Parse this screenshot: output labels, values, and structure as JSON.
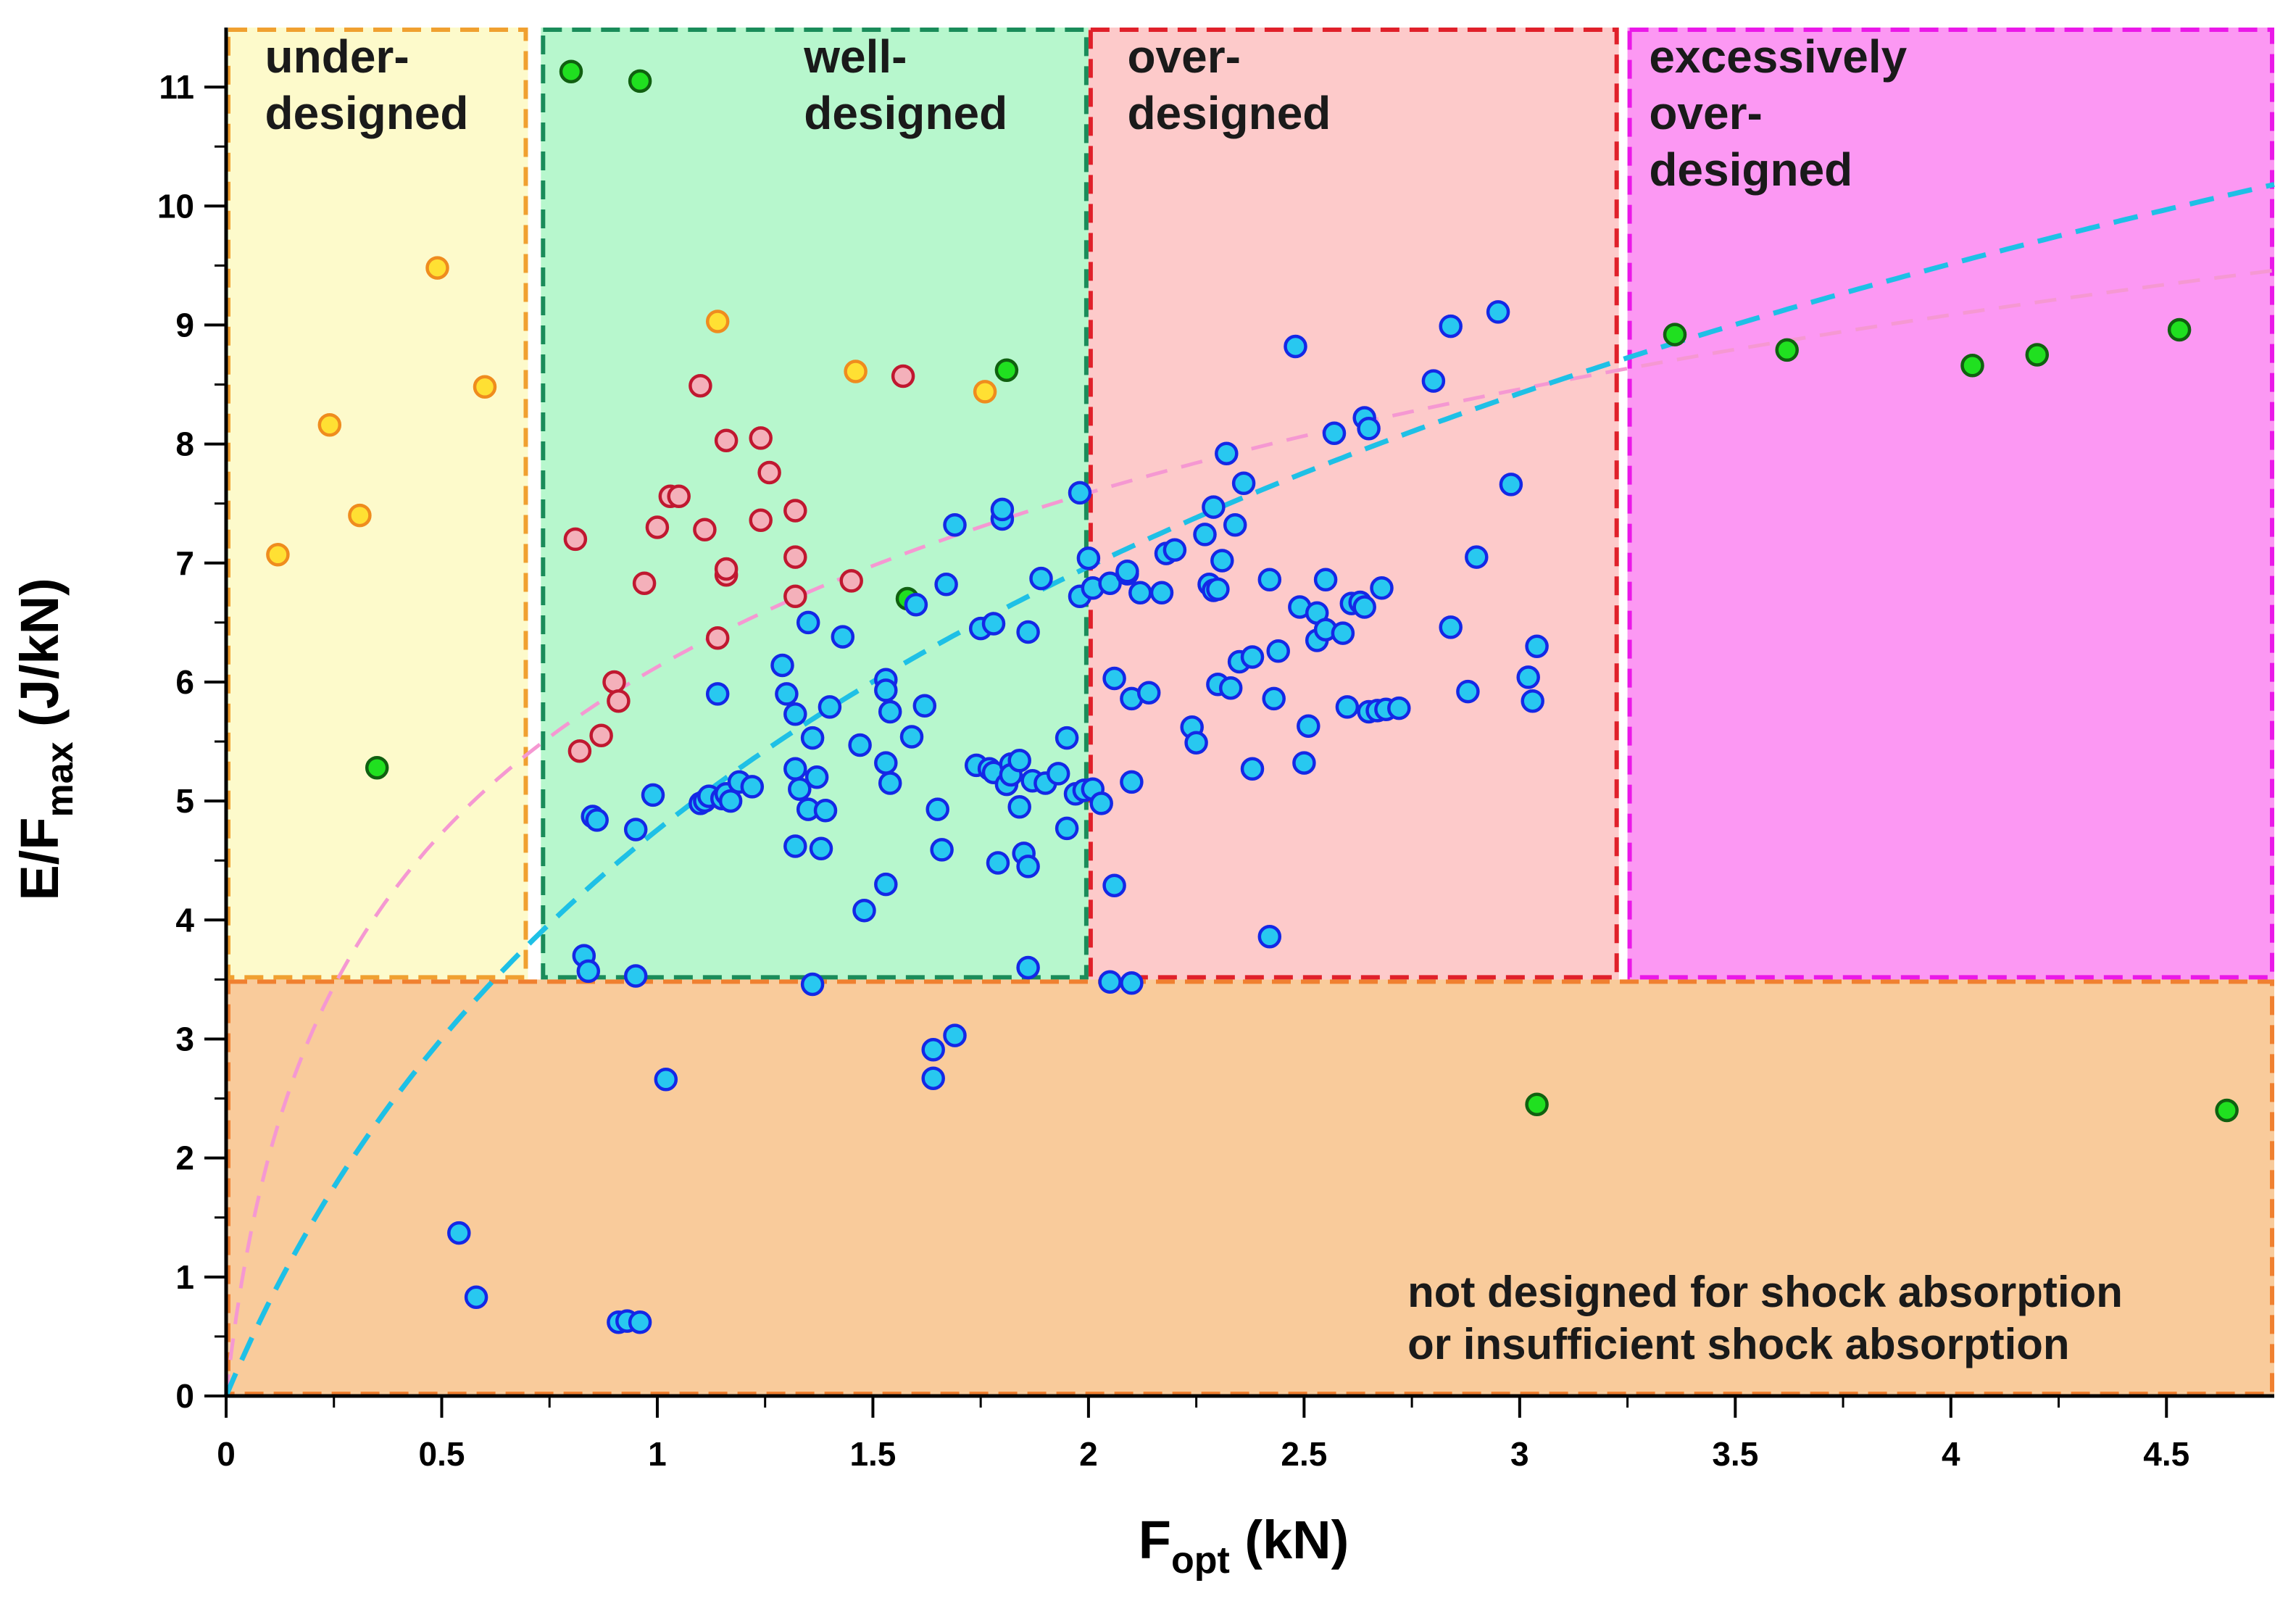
{
  "chart_data": {
    "type": "scatter",
    "title": "",
    "xlabel": {
      "main": "F",
      "sub": "opt",
      "unit": " (kN)"
    },
    "ylabel": {
      "main": "E/F",
      "sub": "max",
      "unit": " (J/kN)"
    },
    "xlim": [
      0,
      4.75
    ],
    "ylim": [
      0,
      11.5
    ],
    "x_ticks": [
      "0",
      "0.5",
      "1",
      "1.5",
      "2",
      "2.5",
      "3",
      "3.5",
      "4",
      "4.5"
    ],
    "y_ticks": [
      "0",
      "1",
      "2",
      "3",
      "4",
      "5",
      "6",
      "7",
      "8",
      "9",
      "10",
      "11"
    ],
    "grid": false,
    "legend": "none",
    "regions": [
      {
        "name": "under-designed",
        "x": [
          0,
          0.7
        ],
        "y": [
          3.5,
          11.5
        ],
        "fill": "#fdfacb",
        "border": "#f0a030"
      },
      {
        "name": "well-designed",
        "x": [
          0.73,
          2.0
        ],
        "y": [
          3.5,
          11.5
        ],
        "fill": "#b7f7cd",
        "border": "#1a8c5a"
      },
      {
        "name": "over-designed",
        "x": [
          2.0,
          3.23
        ],
        "y": [
          3.5,
          11.5
        ],
        "fill": "#fdcaca",
        "border": "#e0202a"
      },
      {
        "name": "excessively over-designed",
        "x": [
          3.25,
          4.75
        ],
        "y": [
          3.5,
          11.5
        ],
        "fill": "#fc98f3",
        "border": "#ea18e8"
      },
      {
        "name": "not designed for shock absorption",
        "x": [
          0,
          4.75
        ],
        "y": [
          0,
          3.5
        ],
        "fill": "#f9cb9b",
        "border": "#f08030"
      }
    ],
    "zone_labels": [
      {
        "lines": [
          "under-",
          "designed"
        ],
        "x": 0.09,
        "y": 11.05
      },
      {
        "lines": [
          "well-",
          "designed"
        ],
        "x": 1.34,
        "y": 11.05
      },
      {
        "lines": [
          "over-",
          "designed"
        ],
        "x": 2.09,
        "y": 11.05
      },
      {
        "lines": [
          "excessively",
          "over-",
          "designed"
        ],
        "x": 3.3,
        "y": 11.05
      }
    ],
    "note": {
      "lines": [
        "not designed for shock absorption",
        "or insufficient shock absorption"
      ],
      "x": 2.74,
      "y": 0.75
    },
    "curves": [
      {
        "name": "",
        "color": "#f598d2",
        "dash": "30,20",
        "width": 5,
        "formula": "a*log(1+b*x)",
        "a": 2.21,
        "b": 15.0
      },
      {
        "name": "",
        "color": "#1ec0e6",
        "dash": "34,20",
        "width": 7,
        "formula": "a*log(1+b*x)",
        "a": 4.33,
        "b": 2.0
      }
    ],
    "series": [
      {
        "name": "",
        "fill": "#ffe033",
        "stroke": "#ef8c1e",
        "points": [
          [
            0.12,
            7.07
          ],
          [
            0.24,
            8.16
          ],
          [
            0.31,
            7.4
          ],
          [
            0.49,
            9.48
          ],
          [
            0.6,
            8.48
          ],
          [
            1.14,
            9.03
          ],
          [
            1.46,
            8.61
          ],
          [
            1.76,
            8.44
          ]
        ]
      },
      {
        "name": "",
        "fill": "#f4b0ba",
        "stroke": "#c01830",
        "points": [
          [
            0.81,
            7.2
          ],
          [
            0.82,
            5.42
          ],
          [
            0.87,
            5.55
          ],
          [
            0.9,
            6.0
          ],
          [
            0.91,
            5.84
          ],
          [
            0.97,
            6.83
          ],
          [
            1.0,
            7.3
          ],
          [
            1.03,
            7.56
          ],
          [
            1.05,
            7.56
          ],
          [
            1.1,
            8.49
          ],
          [
            1.11,
            7.28
          ],
          [
            1.14,
            6.37
          ],
          [
            1.16,
            6.9
          ],
          [
            1.16,
            6.95
          ],
          [
            1.16,
            8.03
          ],
          [
            1.24,
            8.05
          ],
          [
            1.24,
            7.36
          ],
          [
            1.26,
            7.76
          ],
          [
            1.32,
            7.44
          ],
          [
            1.32,
            7.05
          ],
          [
            1.32,
            6.72
          ],
          [
            1.45,
            6.85
          ],
          [
            1.57,
            8.57
          ]
        ]
      },
      {
        "name": "",
        "fill": "#20e020",
        "stroke": "#106010",
        "points": [
          [
            0.35,
            5.28
          ],
          [
            0.8,
            11.13
          ],
          [
            0.96,
            11.05
          ],
          [
            1.58,
            6.7
          ],
          [
            1.81,
            8.62
          ],
          [
            3.04,
            2.45
          ],
          [
            3.36,
            8.92
          ],
          [
            3.62,
            8.79
          ],
          [
            4.05,
            8.66
          ],
          [
            4.2,
            8.75
          ],
          [
            4.53,
            8.96
          ],
          [
            4.64,
            2.4
          ]
        ]
      },
      {
        "name": "",
        "fill": "#28c8f0",
        "stroke": "#1428e6",
        "points": [
          [
            0.54,
            1.37
          ],
          [
            0.58,
            0.83
          ],
          [
            0.83,
            3.7
          ],
          [
            0.84,
            3.57
          ],
          [
            0.85,
            4.87
          ],
          [
            0.86,
            4.84
          ],
          [
            0.91,
            0.62
          ],
          [
            0.93,
            0.63
          ],
          [
            0.95,
            3.53
          ],
          [
            0.95,
            4.76
          ],
          [
            0.96,
            0.62
          ],
          [
            0.99,
            5.05
          ],
          [
            1.02,
            2.66
          ],
          [
            1.1,
            4.98
          ],
          [
            1.11,
            5.0
          ],
          [
            1.12,
            5.04
          ],
          [
            1.14,
            5.9
          ],
          [
            1.15,
            5.02
          ],
          [
            1.16,
            5.06
          ],
          [
            1.17,
            5.0
          ],
          [
            1.19,
            5.16
          ],
          [
            1.22,
            5.12
          ],
          [
            1.29,
            6.14
          ],
          [
            1.3,
            5.9
          ],
          [
            1.32,
            5.27
          ],
          [
            1.32,
            5.73
          ],
          [
            1.32,
            4.62
          ],
          [
            1.33,
            5.1
          ],
          [
            1.35,
            4.93
          ],
          [
            1.35,
            6.5
          ],
          [
            1.36,
            5.53
          ],
          [
            1.36,
            3.46
          ],
          [
            1.37,
            5.2
          ],
          [
            1.38,
            4.6
          ],
          [
            1.39,
            4.92
          ],
          [
            1.4,
            5.79
          ],
          [
            1.43,
            6.38
          ],
          [
            1.47,
            5.47
          ],
          [
            1.48,
            4.08
          ],
          [
            1.53,
            6.02
          ],
          [
            1.53,
            5.93
          ],
          [
            1.53,
            5.32
          ],
          [
            1.53,
            4.3
          ],
          [
            1.54,
            5.75
          ],
          [
            1.54,
            5.15
          ],
          [
            1.59,
            5.54
          ],
          [
            1.6,
            6.65
          ],
          [
            1.62,
            5.8
          ],
          [
            1.64,
            2.91
          ],
          [
            1.64,
            2.67
          ],
          [
            1.65,
            4.93
          ],
          [
            1.66,
            4.59
          ],
          [
            1.67,
            6.82
          ],
          [
            1.69,
            3.03
          ],
          [
            1.69,
            7.32
          ],
          [
            1.74,
            5.3
          ],
          [
            1.75,
            6.45
          ],
          [
            1.77,
            5.27
          ],
          [
            1.78,
            5.24
          ],
          [
            1.78,
            6.49
          ],
          [
            1.79,
            4.48
          ],
          [
            1.8,
            7.37
          ],
          [
            1.8,
            7.45
          ],
          [
            1.81,
            5.14
          ],
          [
            1.82,
            5.31
          ],
          [
            1.82,
            5.22
          ],
          [
            1.84,
            5.34
          ],
          [
            1.84,
            4.95
          ],
          [
            1.85,
            4.56
          ],
          [
            1.86,
            4.45
          ],
          [
            1.86,
            6.42
          ],
          [
            1.86,
            3.6
          ],
          [
            1.87,
            5.17
          ],
          [
            1.89,
            6.87
          ],
          [
            1.9,
            5.15
          ],
          [
            1.93,
            5.23
          ],
          [
            1.95,
            5.53
          ],
          [
            1.95,
            4.77
          ],
          [
            1.97,
            5.06
          ],
          [
            1.98,
            6.72
          ],
          [
            1.98,
            7.59
          ],
          [
            1.99,
            5.09
          ],
          [
            2.0,
            7.04
          ],
          [
            2.01,
            6.79
          ],
          [
            2.01,
            5.1
          ],
          [
            2.03,
            4.98
          ],
          [
            2.05,
            6.83
          ],
          [
            2.05,
            3.48
          ],
          [
            2.06,
            4.29
          ],
          [
            2.06,
            6.03
          ],
          [
            2.09,
            6.91
          ],
          [
            2.09,
            6.93
          ],
          [
            2.1,
            5.86
          ],
          [
            2.1,
            5.16
          ],
          [
            2.1,
            3.47
          ],
          [
            2.12,
            6.75
          ],
          [
            2.14,
            5.91
          ],
          [
            2.17,
            6.75
          ],
          [
            2.18,
            7.08
          ],
          [
            2.2,
            7.11
          ],
          [
            2.24,
            5.62
          ],
          [
            2.25,
            5.49
          ],
          [
            2.27,
            7.24
          ],
          [
            2.28,
            6.82
          ],
          [
            2.29,
            6.77
          ],
          [
            2.29,
            7.47
          ],
          [
            2.3,
            5.98
          ],
          [
            2.3,
            6.78
          ],
          [
            2.31,
            7.02
          ],
          [
            2.32,
            7.92
          ],
          [
            2.33,
            5.95
          ],
          [
            2.34,
            7.32
          ],
          [
            2.35,
            6.17
          ],
          [
            2.36,
            7.67
          ],
          [
            2.38,
            6.21
          ],
          [
            2.38,
            5.27
          ],
          [
            2.42,
            6.86
          ],
          [
            2.42,
            3.86
          ],
          [
            2.43,
            5.86
          ],
          [
            2.44,
            6.26
          ],
          [
            2.48,
            8.82
          ],
          [
            2.49,
            6.63
          ],
          [
            2.5,
            5.32
          ],
          [
            2.51,
            5.63
          ],
          [
            2.53,
            6.35
          ],
          [
            2.53,
            6.58
          ],
          [
            2.55,
            6.44
          ],
          [
            2.55,
            6.86
          ],
          [
            2.57,
            8.09
          ],
          [
            2.59,
            6.41
          ],
          [
            2.6,
            5.79
          ],
          [
            2.61,
            6.66
          ],
          [
            2.63,
            6.67
          ],
          [
            2.64,
            8.22
          ],
          [
            2.64,
            6.63
          ],
          [
            2.65,
            8.13
          ],
          [
            2.65,
            5.75
          ],
          [
            2.67,
            5.76
          ],
          [
            2.68,
            6.79
          ],
          [
            2.69,
            5.77
          ],
          [
            2.72,
            5.78
          ],
          [
            2.8,
            8.53
          ],
          [
            2.84,
            6.46
          ],
          [
            2.84,
            8.99
          ],
          [
            2.88,
            5.92
          ],
          [
            2.9,
            7.05
          ],
          [
            2.95,
            9.11
          ],
          [
            2.98,
            7.66
          ],
          [
            3.02,
            6.04
          ],
          [
            3.03,
            5.84
          ],
          [
            3.04,
            6.3
          ]
        ]
      }
    ]
  }
}
